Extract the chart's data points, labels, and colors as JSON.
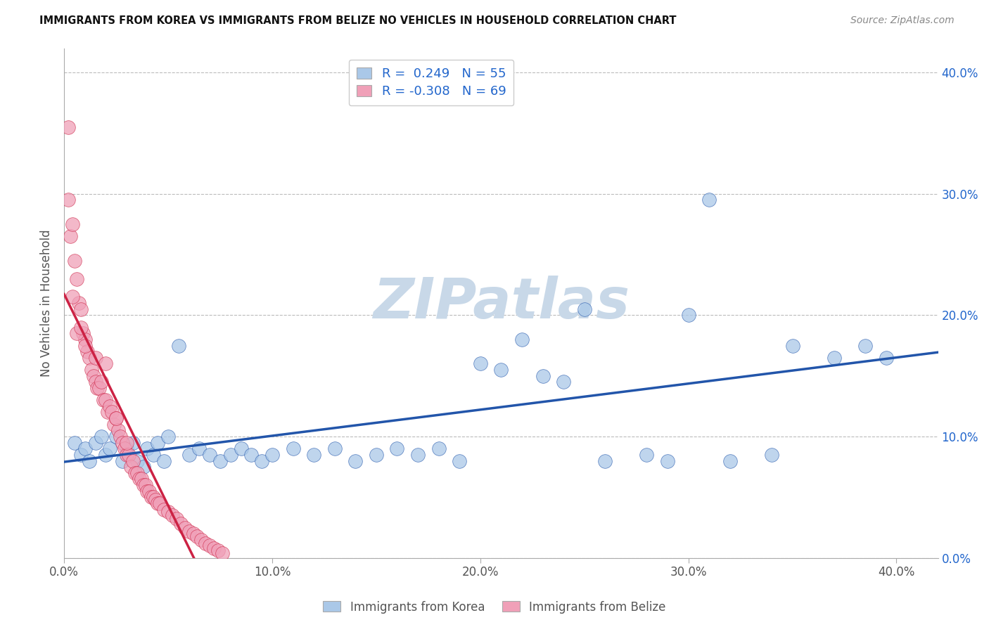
{
  "title": "IMMIGRANTS FROM KOREA VS IMMIGRANTS FROM BELIZE NO VEHICLES IN HOUSEHOLD CORRELATION CHART",
  "source": "Source: ZipAtlas.com",
  "ylabel": "No Vehicles in Household",
  "xlim": [
    0.0,
    0.42
  ],
  "ylim": [
    0.0,
    0.42
  ],
  "legend_r_korea": "R =  0.249",
  "legend_n_korea": "N = 55",
  "legend_r_belize": "R = -0.308",
  "legend_n_belize": "N = 69",
  "korea_color": "#aac8e8",
  "belize_color": "#f0a0b8",
  "korea_line_color": "#2255aa",
  "belize_line_color": "#cc2244",
  "background_color": "#ffffff",
  "grid_color": "#cccccc",
  "watermark": "ZIPatlas",
  "watermark_color": "#c8d8e8",
  "korea_x": [
    0.005,
    0.008,
    0.01,
    0.012,
    0.015,
    0.018,
    0.02,
    0.022,
    0.025,
    0.028,
    0.03,
    0.033,
    0.035,
    0.038,
    0.04,
    0.043,
    0.045,
    0.048,
    0.05,
    0.055,
    0.06,
    0.065,
    0.07,
    0.075,
    0.08,
    0.085,
    0.09,
    0.095,
    0.1,
    0.11,
    0.12,
    0.13,
    0.14,
    0.15,
    0.16,
    0.17,
    0.18,
    0.19,
    0.2,
    0.21,
    0.22,
    0.23,
    0.24,
    0.25,
    0.26,
    0.28,
    0.29,
    0.3,
    0.31,
    0.32,
    0.34,
    0.35,
    0.37,
    0.385,
    0.395
  ],
  "korea_y": [
    0.095,
    0.085,
    0.09,
    0.08,
    0.095,
    0.1,
    0.085,
    0.09,
    0.1,
    0.08,
    0.09,
    0.095,
    0.08,
    0.075,
    0.09,
    0.085,
    0.095,
    0.08,
    0.1,
    0.175,
    0.085,
    0.09,
    0.085,
    0.08,
    0.085,
    0.09,
    0.085,
    0.08,
    0.085,
    0.09,
    0.085,
    0.09,
    0.08,
    0.085,
    0.09,
    0.085,
    0.09,
    0.08,
    0.16,
    0.155,
    0.18,
    0.15,
    0.145,
    0.205,
    0.08,
    0.085,
    0.08,
    0.2,
    0.295,
    0.08,
    0.085,
    0.175,
    0.165,
    0.175,
    0.165
  ],
  "belize_x": [
    0.002,
    0.003,
    0.004,
    0.005,
    0.006,
    0.007,
    0.008,
    0.009,
    0.01,
    0.011,
    0.012,
    0.013,
    0.014,
    0.015,
    0.016,
    0.017,
    0.018,
    0.019,
    0.02,
    0.021,
    0.022,
    0.023,
    0.024,
    0.025,
    0.026,
    0.027,
    0.028,
    0.029,
    0.03,
    0.031,
    0.032,
    0.033,
    0.034,
    0.035,
    0.036,
    0.037,
    0.038,
    0.039,
    0.04,
    0.041,
    0.042,
    0.043,
    0.044,
    0.045,
    0.046,
    0.048,
    0.05,
    0.052,
    0.054,
    0.056,
    0.058,
    0.06,
    0.062,
    0.064,
    0.066,
    0.068,
    0.07,
    0.072,
    0.074,
    0.076,
    0.002,
    0.004,
    0.006,
    0.008,
    0.01,
    0.015,
    0.02,
    0.025,
    0.03
  ],
  "belize_y": [
    0.355,
    0.265,
    0.275,
    0.245,
    0.23,
    0.21,
    0.205,
    0.185,
    0.18,
    0.17,
    0.165,
    0.155,
    0.15,
    0.145,
    0.14,
    0.14,
    0.145,
    0.13,
    0.13,
    0.12,
    0.125,
    0.12,
    0.11,
    0.115,
    0.105,
    0.1,
    0.095,
    0.09,
    0.085,
    0.085,
    0.075,
    0.08,
    0.07,
    0.07,
    0.065,
    0.065,
    0.06,
    0.06,
    0.055,
    0.055,
    0.05,
    0.05,
    0.048,
    0.045,
    0.045,
    0.04,
    0.038,
    0.035,
    0.032,
    0.028,
    0.025,
    0.022,
    0.02,
    0.018,
    0.015,
    0.012,
    0.01,
    0.008,
    0.006,
    0.004,
    0.295,
    0.215,
    0.185,
    0.19,
    0.175,
    0.165,
    0.16,
    0.115,
    0.095
  ]
}
